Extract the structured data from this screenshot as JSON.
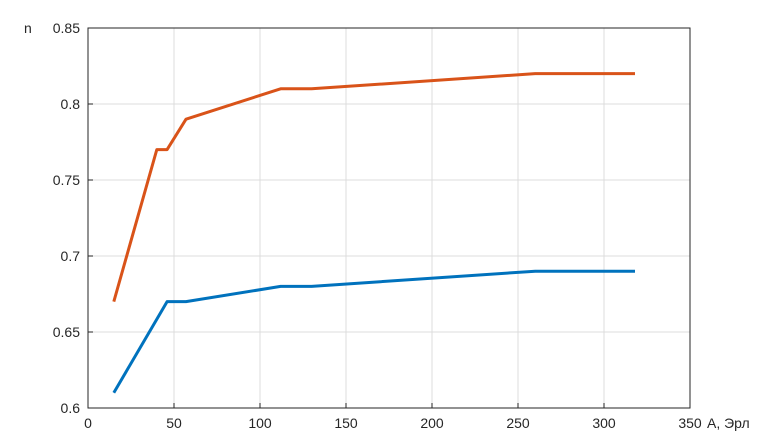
{
  "chart_data": {
    "type": "line",
    "title": "",
    "xlabel": "A, Эрл",
    "ylabel": "n",
    "xlim": [
      0,
      350
    ],
    "ylim": [
      0.6,
      0.85
    ],
    "xticks": [
      "0",
      "50",
      "100",
      "150",
      "200",
      "250",
      "300",
      "350"
    ],
    "yticks": [
      "0.6",
      "0.65",
      "0.7",
      "0.75",
      "0.8",
      "0.85"
    ],
    "grid": true,
    "series": [
      {
        "color": "#D95319",
        "x": [
          15,
          40,
          46,
          57,
          112,
          130,
          260,
          318
        ],
        "y": [
          0.67,
          0.77,
          0.77,
          0.79,
          0.81,
          0.81,
          0.82,
          0.82
        ]
      },
      {
        "color": "#0072BD",
        "x": [
          15,
          46,
          57,
          112,
          130,
          260,
          318
        ],
        "y": [
          0.61,
          0.67,
          0.67,
          0.68,
          0.68,
          0.69,
          0.69
        ]
      }
    ]
  }
}
